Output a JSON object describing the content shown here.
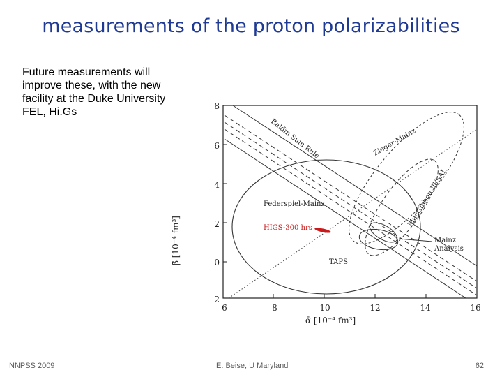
{
  "slide": {
    "title": "measurements of the proton polarizabilities",
    "body": "Future measurements will improve these, with the new facility at the Duke University FEL, Hi.Gs"
  },
  "figure": {
    "y_axis_label": "β̄ [10⁻⁴ fm³]",
    "x_axis_label": "ᾱ [10⁻⁴ fm³]",
    "x_ticks": [
      "6",
      "8",
      "10",
      "12",
      "14",
      "16"
    ],
    "y_ticks": [
      "8",
      "6",
      "4",
      "2",
      "0",
      "-2"
    ],
    "annotations": {
      "baldin": "Baldin Sum Rule",
      "zieger": "Zieger-Mainz",
      "mac": "MacGibbon-Ill/SAL",
      "federspiel": "Federspiel-Mainz",
      "higs": "HIGS-300 hrs",
      "mainz1": "Mainz",
      "mainz2": "Analysis",
      "taps": "TAPS"
    },
    "colors": {
      "higs": "#cc1a1a",
      "ink": "#222222"
    }
  },
  "footer": {
    "left": "NNPSS 2009",
    "center": "E. Beise, U Maryland",
    "right": "62"
  }
}
